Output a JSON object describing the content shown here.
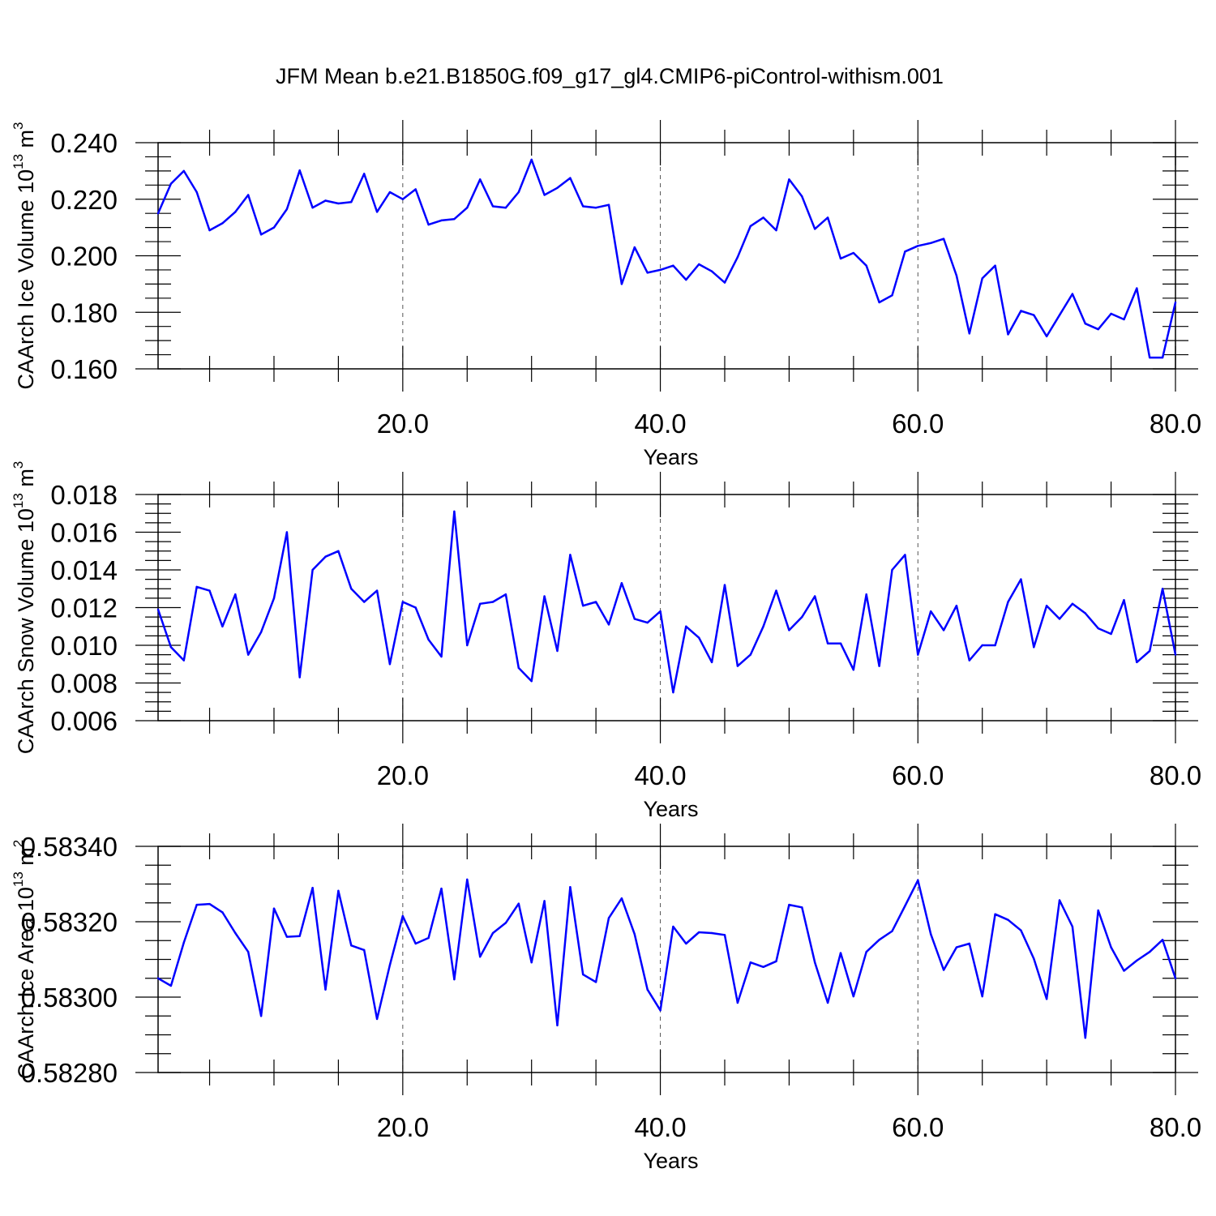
{
  "title": "JFM Mean b.e21.B1850G.f09_g17_gl4.CMIP6-piControl-withism.001",
  "colors": {
    "line": "#0000ff",
    "frame": "#000000",
    "grid": "#555555"
  },
  "chart_data": [
    {
      "type": "line",
      "xlabel": "Years",
      "ylabel": "CAArch Ice Volume 10",
      "ylabel_sup": "13",
      "ylabel_unit": " m",
      "ylabel_unit_sup": "3",
      "xlim": [
        1,
        80
      ],
      "ylim": [
        0.16,
        0.24
      ],
      "xticks": [
        20,
        40,
        60,
        80
      ],
      "xtick_labels": [
        "20.0",
        "40.0",
        "60.0",
        "80.0"
      ],
      "yticks": [
        0.16,
        0.18,
        0.2,
        0.22,
        0.24
      ],
      "ytick_labels": [
        "0.160",
        "0.180",
        "0.200",
        "0.220",
        "0.240"
      ],
      "y_minor_step": 0.005,
      "grid_x": [
        20,
        40,
        60
      ],
      "series": [
        {
          "values": [
            0.215,
            0.2255,
            0.23,
            0.2225,
            0.209,
            0.2115,
            0.2155,
            0.2215,
            0.2075,
            0.21,
            0.2165,
            0.2302,
            0.217,
            0.2195,
            0.2185,
            0.219,
            0.229,
            0.2155,
            0.2225,
            0.22,
            0.2235,
            0.211,
            0.2125,
            0.213,
            0.217,
            0.227,
            0.2175,
            0.217,
            0.2225,
            0.234,
            0.2215,
            0.224,
            0.2275,
            0.2175,
            0.217,
            0.218,
            0.19,
            0.203,
            0.194,
            0.195,
            0.1965,
            0.1915,
            0.197,
            0.1945,
            0.1905,
            0.1995,
            0.2105,
            0.2135,
            0.209,
            0.227,
            0.221,
            0.2095,
            0.2135,
            0.199,
            0.201,
            0.1965,
            0.1835,
            0.186,
            0.2015,
            0.2035,
            0.2045,
            0.206,
            0.193,
            0.1725,
            0.192,
            0.1965,
            0.1722,
            0.1805,
            0.179,
            0.1715,
            0.179,
            0.1865,
            0.176,
            0.174,
            0.1795,
            0.1775,
            0.1885,
            0.164,
            0.164,
            0.1835
          ]
        }
      ]
    },
    {
      "type": "line",
      "xlabel": "Years",
      "ylabel": "CAArch Snow Volume 10",
      "ylabel_sup": "13",
      "ylabel_unit": " m",
      "ylabel_unit_sup": "3",
      "xlim": [
        1,
        80
      ],
      "ylim": [
        0.006,
        0.018
      ],
      "xticks": [
        20,
        40,
        60,
        80
      ],
      "xtick_labels": [
        "20.0",
        "40.0",
        "60.0",
        "80.0"
      ],
      "yticks": [
        0.006,
        0.008,
        0.01,
        0.012,
        0.014,
        0.016,
        0.018
      ],
      "ytick_labels": [
        "0.006",
        "0.008",
        "0.010",
        "0.012",
        "0.014",
        "0.016",
        "0.018"
      ],
      "y_minor_step": 0.0005,
      "grid_x": [
        20,
        40,
        60
      ],
      "series": [
        {
          "values": [
            0.0119,
            0.0099,
            0.0092,
            0.0131,
            0.0129,
            0.011,
            0.0127,
            0.0095,
            0.0107,
            0.0125,
            0.016,
            0.0083,
            0.014,
            0.0147,
            0.015,
            0.013,
            0.0123,
            0.0129,
            0.009,
            0.0123,
            0.012,
            0.0103,
            0.0094,
            0.0171,
            0.01,
            0.0122,
            0.0123,
            0.0127,
            0.0088,
            0.0081,
            0.0126,
            0.0097,
            0.0148,
            0.0121,
            0.0123,
            0.0111,
            0.0133,
            0.0114,
            0.0112,
            0.0118,
            0.0075,
            0.011,
            0.0104,
            0.0091,
            0.0132,
            0.0089,
            0.0095,
            0.011,
            0.0129,
            0.0108,
            0.0115,
            0.0126,
            0.0101,
            0.0101,
            0.0087,
            0.0127,
            0.0089,
            0.014,
            0.0148,
            0.0095,
            0.0118,
            0.0108,
            0.0121,
            0.0092,
            0.01,
            0.01,
            0.0123,
            0.0135,
            0.0099,
            0.0121,
            0.0114,
            0.0122,
            0.0117,
            0.0109,
            0.0106,
            0.0124,
            0.0091,
            0.0097,
            0.013,
            0.0095
          ]
        }
      ]
    },
    {
      "type": "line",
      "xlabel": "Years",
      "ylabel": "CAArch Ice Area 10",
      "ylabel_sup": "13",
      "ylabel_unit": " m",
      "ylabel_unit_sup": "2",
      "xlim": [
        1,
        80
      ],
      "ylim": [
        0.5828,
        0.5834
      ],
      "xticks": [
        20,
        40,
        60,
        80
      ],
      "xtick_labels": [
        "20.0",
        "40.0",
        "60.0",
        "80.0"
      ],
      "yticks": [
        0.5828,
        0.583,
        0.5832,
        0.5834
      ],
      "ytick_labels": [
        "0.58280",
        "0.58300",
        "0.58320",
        "0.58340"
      ],
      "y_minor_step": 5e-05,
      "grid_x": [
        20,
        40,
        60
      ],
      "series": [
        {
          "values": [
            0.58305,
            0.58303,
            0.583145,
            0.583245,
            0.583247,
            0.583225,
            0.58317,
            0.58312,
            0.58295,
            0.583235,
            0.58316,
            0.583162,
            0.58329,
            0.58302,
            0.583282,
            0.583137,
            0.583125,
            0.582942,
            0.583085,
            0.583215,
            0.583142,
            0.583157,
            0.583288,
            0.583047,
            0.583312,
            0.583107,
            0.58317,
            0.583197,
            0.583248,
            0.583092,
            0.583255,
            0.582925,
            0.583292,
            0.58306,
            0.58304,
            0.58321,
            0.583262,
            0.583167,
            0.58302,
            0.582965,
            0.583187,
            0.583142,
            0.583172,
            0.58317,
            0.583165,
            0.582985,
            0.583092,
            0.58308,
            0.583095,
            0.583245,
            0.583238,
            0.583092,
            0.582985,
            0.583117,
            0.583002,
            0.58312,
            0.583152,
            0.583175,
            0.583242,
            0.58331,
            0.583167,
            0.583072,
            0.583132,
            0.583142,
            0.583002,
            0.58322,
            0.583205,
            0.583177,
            0.583102,
            0.582995,
            0.583257,
            0.583187,
            0.582892,
            0.58323,
            0.583132,
            0.58307,
            0.583097,
            0.58312,
            0.583152,
            0.58305
          ]
        }
      ]
    }
  ]
}
